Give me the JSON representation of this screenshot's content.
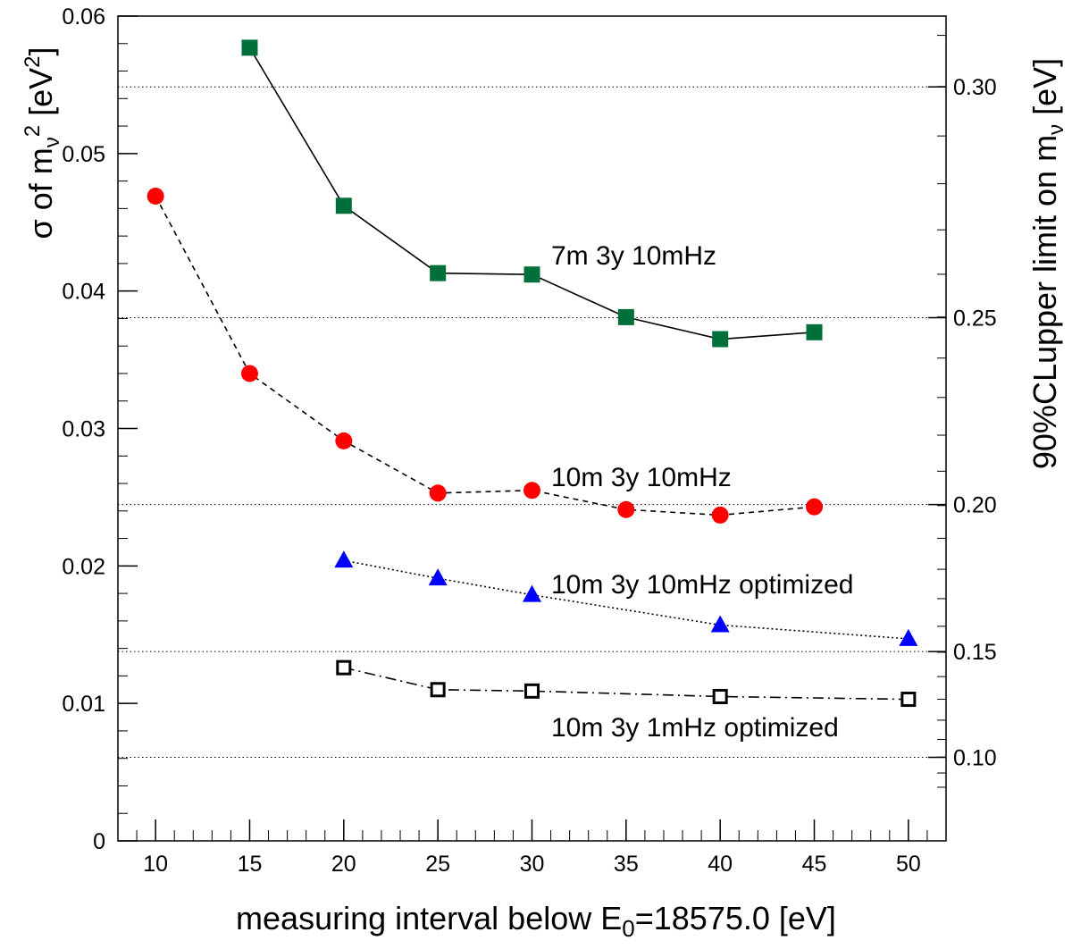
{
  "chart_data": {
    "type": "line",
    "xlabel": {
      "main": "measuring interval below E",
      "sub": "0",
      "rest": "=18575.0 [eV]"
    },
    "ylabel_left": {
      "pre": "σ of m",
      "sub": "ν",
      "sup": "2",
      "post": " [eV",
      "sup2": "2",
      "end": "]"
    },
    "ylabel_right": {
      "pre": "90%CLupper limit on m",
      "sub": "ν",
      "post": " [eV]"
    },
    "xlim": [
      8,
      52
    ],
    "ylim": [
      0,
      0.06
    ],
    "x_ticks": [
      "10",
      "15",
      "20",
      "25",
      "30",
      "35",
      "40",
      "45",
      "50"
    ],
    "y_ticks": [
      "0",
      "0.01",
      "0.02",
      "0.03",
      "0.04",
      "0.05",
      "0.06"
    ],
    "right_ticks": [
      "0.10",
      "0.15",
      "0.20",
      "0.25",
      "0.30"
    ],
    "right_ticks_sigma": [
      0.00608,
      0.01377,
      0.02447,
      0.03806,
      0.05485
    ],
    "grid": "horizontal dotted at right-axis ticks",
    "series": [
      {
        "name": "7m 3y 10mHz",
        "marker": "square-filled",
        "line": "solid",
        "color": "#00703a",
        "x": [
          15,
          20,
          25,
          30,
          35,
          40,
          45
        ],
        "values": [
          0.0577,
          0.0462,
          0.0413,
          0.0412,
          0.0381,
          0.0365,
          0.037
        ]
      },
      {
        "name": "10m 3y 10mHz",
        "marker": "circle-filled",
        "line": "dashed",
        "color": "#ff0000",
        "x": [
          10,
          15,
          20,
          25,
          30,
          35,
          40,
          45
        ],
        "values": [
          0.0469,
          0.034,
          0.0291,
          0.0253,
          0.0255,
          0.0241,
          0.0237,
          0.0243
        ]
      },
      {
        "name": "10m 3y 10mHz optimized",
        "marker": "triangle-filled",
        "line": "dotted",
        "color": "#0000ff",
        "x": [
          20,
          25,
          30,
          40,
          50
        ],
        "values": [
          0.0204,
          0.0191,
          0.0179,
          0.0157,
          0.0147
        ]
      },
      {
        "name": "10m 3y 1mHz optimized",
        "marker": "square-open",
        "line": "dashdot",
        "color": "#000000",
        "x": [
          20,
          25,
          30,
          40,
          50
        ],
        "values": [
          0.0126,
          0.011,
          0.0109,
          0.0105,
          0.0103
        ]
      }
    ]
  }
}
